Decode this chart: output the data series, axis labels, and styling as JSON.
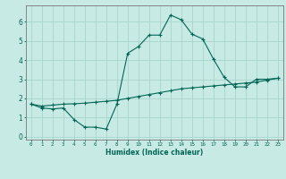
{
  "xlabel": "Humidex (Indice chaleur)",
  "ylabel": "",
  "bg_color": "#c8eae4",
  "grid_color": "#a8d5cc",
  "line_color": "#006655",
  "spine_color": "#777777",
  "xlim": [
    -0.5,
    23.5
  ],
  "ylim": [
    -0.15,
    6.85
  ],
  "xticks": [
    0,
    1,
    2,
    3,
    4,
    5,
    6,
    7,
    8,
    9,
    10,
    11,
    12,
    13,
    14,
    15,
    16,
    17,
    18,
    19,
    20,
    21,
    22,
    23
  ],
  "yticks": [
    0,
    1,
    2,
    3,
    4,
    5,
    6
  ],
  "curve1_x": [
    0,
    1,
    2,
    3,
    4,
    5,
    6,
    7,
    8,
    9,
    10,
    11,
    12,
    13,
    14,
    15,
    16,
    17,
    18,
    19,
    20,
    21,
    22,
    23
  ],
  "curve1_y": [
    1.7,
    1.5,
    1.45,
    1.5,
    0.9,
    0.5,
    0.5,
    0.4,
    1.7,
    4.35,
    4.7,
    5.3,
    5.3,
    6.35,
    6.1,
    5.35,
    5.1,
    4.05,
    3.1,
    2.6,
    2.6,
    3.0,
    3.0,
    3.05
  ],
  "curve2_x": [
    0,
    1,
    2,
    3,
    4,
    5,
    6,
    7,
    8,
    9,
    10,
    11,
    12,
    13,
    14,
    15,
    16,
    17,
    18,
    19,
    20,
    21,
    22,
    23
  ],
  "curve2_y": [
    1.7,
    1.6,
    1.65,
    1.7,
    1.72,
    1.75,
    1.8,
    1.85,
    1.9,
    2.0,
    2.1,
    2.2,
    2.3,
    2.4,
    2.5,
    2.55,
    2.6,
    2.65,
    2.7,
    2.75,
    2.8,
    2.85,
    2.95,
    3.05
  ]
}
